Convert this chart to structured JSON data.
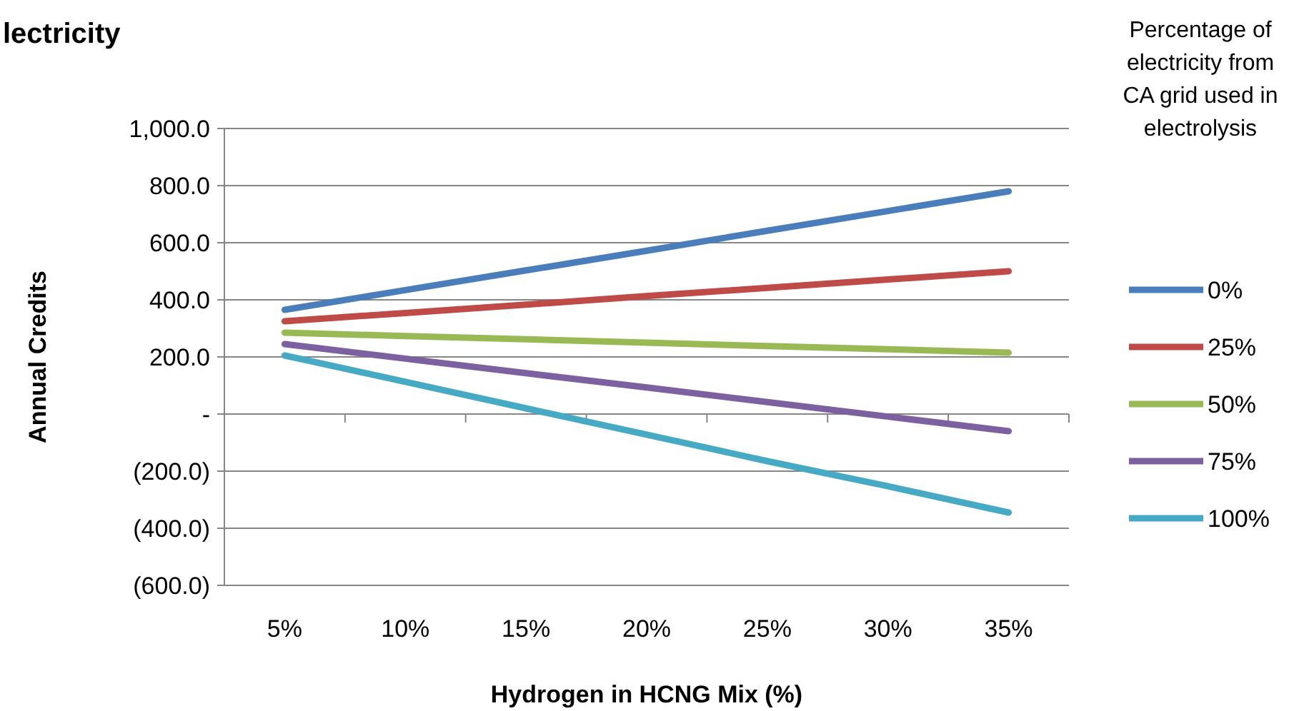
{
  "chart_data": {
    "type": "line",
    "title": "lectricity",
    "xlabel": "Hydrogen in HCNG Mix (%)",
    "ylabel": "Annual Credits",
    "legend_title": "Percentage of electricity from CA grid used in electrolysis",
    "categories": [
      "5%",
      "10%",
      "15%",
      "20%",
      "25%",
      "30%",
      "35%"
    ],
    "series": [
      {
        "name": "0%",
        "color": "#4a7ebb",
        "values": [
          365,
          434,
          503,
          572,
          642,
          711,
          780
        ]
      },
      {
        "name": "25%",
        "color": "#be4b48",
        "values": [
          325,
          354,
          383,
          413,
          442,
          471,
          500
        ]
      },
      {
        "name": "50%",
        "color": "#98b954",
        "values": [
          285,
          273,
          262,
          250,
          238,
          227,
          215
        ]
      },
      {
        "name": "75%",
        "color": "#7d60a0",
        "values": [
          245,
          194,
          143,
          93,
          42,
          -9,
          -60
        ]
      },
      {
        "name": "100%",
        "color": "#46aac5",
        "values": [
          205,
          113,
          20,
          -72,
          -165,
          -253,
          -345
        ]
      }
    ],
    "ylim": [
      -600,
      1000
    ],
    "yticks": [
      {
        "value": -600,
        "label": "(600.0)"
      },
      {
        "value": -400,
        "label": "(400.0)"
      },
      {
        "value": -200,
        "label": "(200.0)"
      },
      {
        "value": 0,
        "label": "-"
      },
      {
        "value": 200,
        "label": "200.0"
      },
      {
        "value": 400,
        "label": "400.0"
      },
      {
        "value": 600,
        "label": "600.0"
      },
      {
        "value": 800,
        "label": "800.0"
      },
      {
        "value": 1000,
        "label": "1,000.0"
      }
    ],
    "grid": "y",
    "legend": "right",
    "marker": "none",
    "line_style": "solid"
  }
}
